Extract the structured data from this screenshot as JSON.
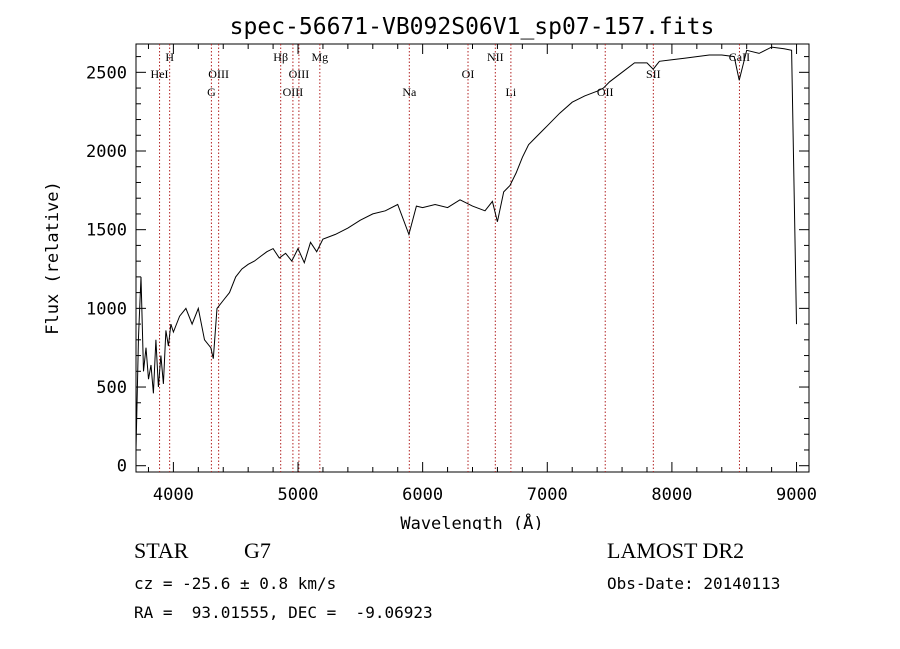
{
  "chart_data": {
    "type": "line",
    "title": "spec-56671-VB092S06V1_sp07-157.fits",
    "xlabel": "Wavelength (Å)",
    "ylabel": "Flux (relative)",
    "xlim": [
      3700,
      9100
    ],
    "ylim": [
      -40,
      2680
    ],
    "xticks": [
      4000,
      5000,
      6000,
      7000,
      8000,
      9000
    ],
    "yticks": [
      0,
      500,
      1000,
      1500,
      2000,
      2500
    ],
    "grid": false,
    "series_color": "#000000",
    "line_color": "#b22222",
    "spectrum": {
      "x": [
        3700,
        3720,
        3740,
        3760,
        3780,
        3800,
        3820,
        3840,
        3860,
        3880,
        3900,
        3920,
        3940,
        3960,
        3980,
        4000,
        4050,
        4100,
        4150,
        4200,
        4250,
        4300,
        4320,
        4350,
        4400,
        4450,
        4500,
        4550,
        4600,
        4650,
        4700,
        4750,
        4800,
        4850,
        4900,
        4950,
        5000,
        5050,
        5100,
        5150,
        5200,
        5300,
        5400,
        5500,
        5600,
        5700,
        5800,
        5890,
        5950,
        6000,
        6100,
        6200,
        6300,
        6400,
        6500,
        6560,
        6600,
        6650,
        6700,
        6750,
        6800,
        6850,
        6900,
        6950,
        7000,
        7100,
        7200,
        7300,
        7400,
        7450,
        7500,
        7600,
        7700,
        7800,
        7850,
        7900,
        8000,
        8100,
        8200,
        8300,
        8400,
        8500,
        8540,
        8600,
        8700,
        8800,
        8900,
        8960,
        9000
      ],
      "y": [
        100,
        820,
        1200,
        600,
        750,
        550,
        640,
        460,
        800,
        500,
        700,
        520,
        860,
        760,
        900,
        850,
        950,
        1000,
        900,
        1000,
        800,
        750,
        680,
        1000,
        1050,
        1100,
        1200,
        1250,
        1280,
        1300,
        1330,
        1360,
        1380,
        1320,
        1350,
        1300,
        1380,
        1290,
        1420,
        1360,
        1440,
        1470,
        1510,
        1560,
        1600,
        1620,
        1660,
        1470,
        1650,
        1640,
        1660,
        1640,
        1690,
        1650,
        1620,
        1680,
        1550,
        1740,
        1780,
        1860,
        1960,
        2040,
        2080,
        2120,
        2160,
        2240,
        2310,
        2350,
        2380,
        2400,
        2440,
        2500,
        2560,
        2560,
        2520,
        2570,
        2580,
        2590,
        2600,
        2610,
        2610,
        2600,
        2450,
        2640,
        2620,
        2660,
        2650,
        2640,
        900
      ]
    },
    "lines": [
      {
        "label": "H",
        "x": 3970,
        "row": 0
      },
      {
        "label": "HeI",
        "x": 3889,
        "row": 1
      },
      {
        "label": "OIII",
        "x": 4363,
        "row": 1
      },
      {
        "label": "G",
        "x": 4305,
        "row": 2
      },
      {
        "label": "Hβ",
        "x": 4861,
        "row": 0
      },
      {
        "label": "OIII",
        "x": 5007,
        "row": 1
      },
      {
        "label": "OIII",
        "x": 4959,
        "row": 2
      },
      {
        "label": "Mg",
        "x": 5175,
        "row": 0
      },
      {
        "label": "Na",
        "x": 5893,
        "row": 2
      },
      {
        "label": "OI",
        "x": 6364,
        "row": 1
      },
      {
        "label": "NII",
        "x": 6583,
        "row": 0
      },
      {
        "label": "Li",
        "x": 6708,
        "row": 2
      },
      {
        "label": "OII",
        "x": 7465,
        "row": 2
      },
      {
        "label": "SII",
        "x": 7851,
        "row": 1
      },
      {
        "label": "CaII",
        "x": 8542,
        "row": 0
      }
    ]
  },
  "info": {
    "object_class": "STAR",
    "subclass": "G7",
    "survey": "LAMOST DR2",
    "cz": "cz = -25.6 ± 0.8 km/s",
    "obs_date": "Obs-Date: 20140113",
    "coords": "RA =  93.01555, DEC =  -9.06923"
  }
}
